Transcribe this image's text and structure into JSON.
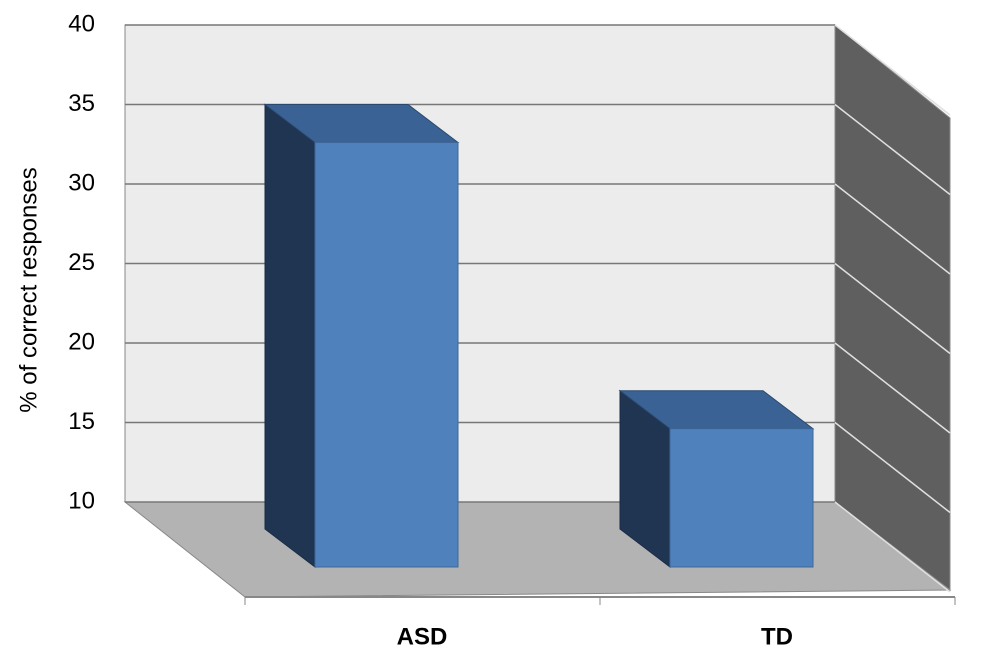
{
  "chart_data": {
    "type": "bar",
    "y_label": "% of correct responses",
    "categories": [
      "ASD",
      "TD"
    ],
    "values": [
      35,
      17
    ],
    "color": "#4f81bd",
    "ylim": [
      10,
      40
    ],
    "yticks": [
      10,
      15,
      20,
      25,
      30,
      35,
      40
    ],
    "grid": true
  }
}
